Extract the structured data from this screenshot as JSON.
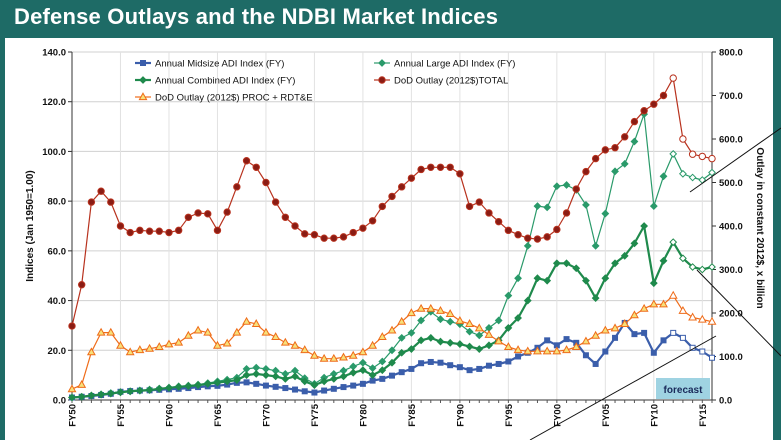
{
  "page": {
    "title": "Defense Outlays and the NDBI Market Indices"
  },
  "colors": {
    "background": "#1e6b66",
    "plot_background": "#ffffff",
    "midsize": "#3b5eab",
    "large": "#2a9a6a",
    "combined": "#1f8a4c",
    "outlay_total": "#b8321e",
    "outlay_proc": "#ef6c1a",
    "forecast_box": "#9fd3e2"
  },
  "chart_data": {
    "type": "line",
    "title": "",
    "xlabel": "",
    "ylabel": "Indices (Jan 1950=1.00)",
    "y2label": "Outlay in constant 2012$, x billion",
    "ylim": [
      0,
      140
    ],
    "y2lim": [
      0,
      800
    ],
    "y_ticks": [
      "0.0",
      "20.0",
      "40.0",
      "60.0",
      "80.0",
      "100.0",
      "120.0",
      "140.0"
    ],
    "y2_ticks": [
      "0.0",
      "100.0",
      "200.0",
      "300.0",
      "400.0",
      "500.0",
      "600.0",
      "700.0",
      "800.0"
    ],
    "x_ticks": [
      "FY50",
      "FY55",
      "FY60",
      "FY65",
      "FY70",
      "FY75",
      "FY80",
      "FY85",
      "FY90",
      "FY95",
      "FY00",
      "FY05",
      "FY10",
      "FY15"
    ],
    "x_start_year": 1950,
    "x_end_year": 2016,
    "forecast_label": "forecast",
    "forecast_start_year": 2011,
    "grid": true,
    "legend_position": "top",
    "series": [
      {
        "name": "Annual Midsize ADI Index (FY)",
        "axis": "left",
        "values": [
          1.0,
          1.3,
          1.6,
          2.0,
          2.5,
          3.3,
          3.6,
          3.8,
          3.9,
          4.1,
          4.3,
          4.5,
          4.8,
          5.2,
          5.5,
          5.7,
          6.2,
          6.9,
          7.1,
          6.5,
          5.8,
          5.3,
          4.8,
          4.2,
          3.5,
          3.0,
          3.8,
          4.5,
          5.2,
          5.8,
          6.5,
          7.8,
          8.5,
          9.8,
          11.2,
          12.5,
          14.8,
          15.3,
          15.0,
          14.0,
          13.2,
          12.0,
          12.5,
          13.8,
          14.5,
          15.5,
          17.5,
          19.0,
          21.0,
          24.0,
          22.0,
          24.5,
          23.0,
          18.0,
          14.5,
          19.5,
          25.0,
          31.0,
          26.5,
          27.0,
          19.0,
          24.0,
          27.0,
          25.0,
          21.0,
          19.5,
          17.0
        ]
      },
      {
        "name": "Annual Large ADI Index (FY)",
        "axis": "left",
        "values": [
          1.0,
          1.3,
          1.8,
          2.3,
          2.8,
          3.2,
          3.5,
          3.8,
          4.2,
          4.6,
          5.0,
          5.5,
          5.8,
          6.2,
          6.8,
          7.5,
          8.2,
          9.0,
          12.5,
          13.0,
          12.5,
          11.8,
          10.5,
          11.8,
          8.8,
          6.5,
          9.0,
          10.5,
          11.8,
          13.5,
          15.0,
          12.8,
          15.5,
          20.0,
          25.0,
          27.0,
          32.0,
          35.5,
          32.5,
          31.5,
          30.5,
          27.5,
          26.0,
          29.0,
          32.0,
          42.0,
          49.0,
          62.0,
          78.0,
          77.5,
          86.0,
          86.5,
          84.5,
          78.5,
          62.0,
          75.0,
          92.0,
          95.0,
          104.0,
          115.0,
          78.0,
          90.0,
          99.0,
          91.0,
          89.5,
          88.5,
          91.5
        ]
      },
      {
        "name": "Annual Combined ADI Index (FY)",
        "axis": "left",
        "values": [
          1.0,
          1.3,
          1.8,
          2.2,
          2.6,
          3.1,
          3.5,
          3.8,
          4.0,
          4.5,
          4.9,
          5.3,
          5.6,
          6.0,
          6.5,
          7.0,
          7.5,
          8.0,
          10.0,
          10.5,
          10.0,
          9.5,
          8.5,
          9.5,
          7.5,
          6.0,
          7.5,
          8.5,
          9.5,
          11.0,
          12.0,
          10.0,
          12.0,
          15.0,
          19.0,
          20.5,
          24.0,
          25.0,
          23.5,
          23.0,
          22.5,
          21.5,
          20.5,
          22.0,
          24.0,
          29.0,
          33.0,
          40.0,
          49.0,
          48.0,
          55.0,
          55.0,
          53.0,
          48.0,
          41.0,
          49.0,
          55.0,
          58.0,
          63.0,
          70.0,
          47.0,
          56.0,
          63.5,
          57.0,
          53.5,
          52.5,
          53.5
        ]
      },
      {
        "name": "DoD Outlay (2012$)TOTAL",
        "axis": "right",
        "values": [
          170,
          265,
          455,
          480,
          455,
          400,
          385,
          390,
          388,
          388,
          385,
          390,
          420,
          430,
          428,
          390,
          432,
          490,
          550,
          535,
          500,
          455,
          420,
          400,
          382,
          380,
          372,
          372,
          375,
          385,
          395,
          412,
          445,
          468,
          490,
          510,
          530,
          535,
          535,
          535,
          520,
          445,
          455,
          430,
          410,
          390,
          380,
          372,
          370,
          375,
          392,
          430,
          485,
          525,
          555,
          575,
          580,
          605,
          640,
          665,
          680,
          700,
          740,
          600,
          565,
          560,
          555
        ]
      },
      {
        "name": "DoD Outlay (2012$) PROC + RDT&E",
        "axis": "right",
        "values": [
          25,
          35,
          110,
          155,
          155,
          125,
          110,
          115,
          118,
          122,
          128,
          132,
          148,
          160,
          155,
          125,
          130,
          155,
          180,
          175,
          155,
          145,
          132,
          125,
          115,
          102,
          95,
          95,
          98,
          102,
          110,
          125,
          145,
          160,
          180,
          200,
          210,
          210,
          205,
          198,
          182,
          175,
          165,
          150,
          135,
          122,
          115,
          112,
          112,
          112,
          112,
          115,
          122,
          135,
          148,
          160,
          165,
          175,
          195,
          210,
          220,
          220,
          240,
          205,
          190,
          185,
          180
        ]
      }
    ]
  }
}
